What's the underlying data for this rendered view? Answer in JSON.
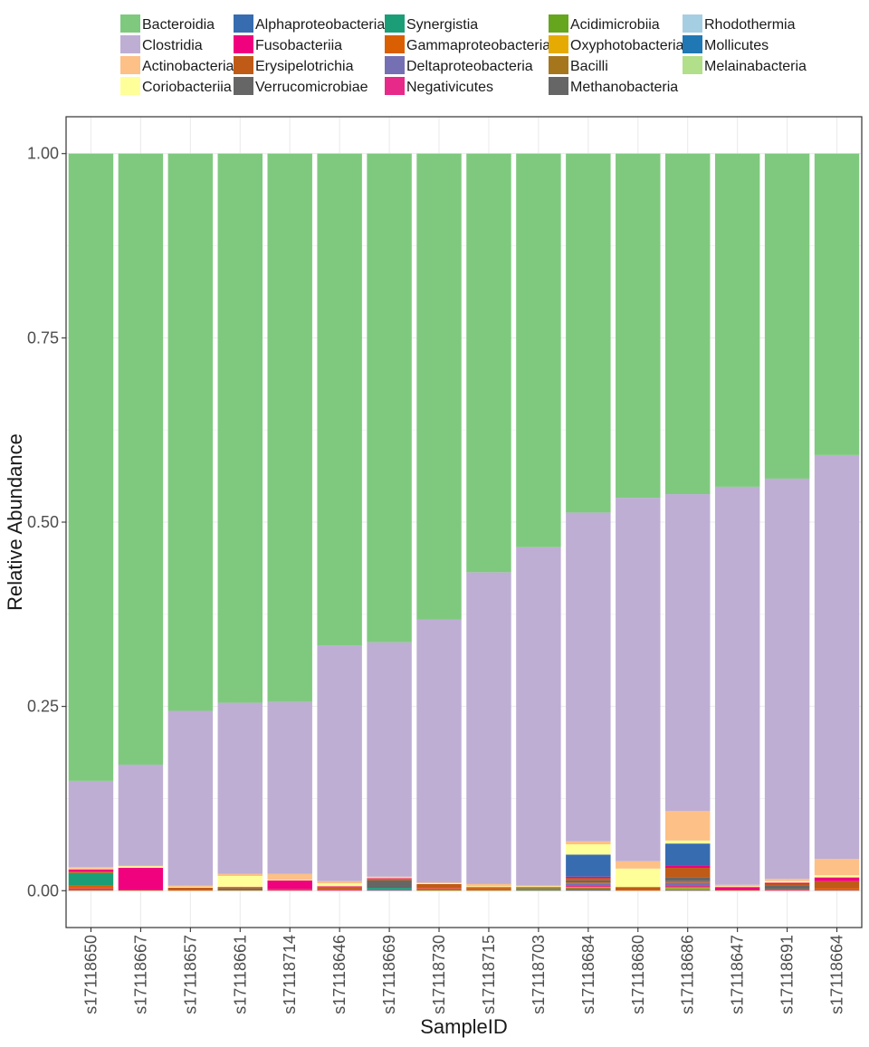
{
  "chart_data": {
    "type": "bar",
    "stacked": true,
    "title": "",
    "xlabel": "SampleID",
    "ylabel": "Relative Abundance",
    "ylim": [
      -0.05,
      1.05
    ],
    "yticks": [
      0.0,
      0.25,
      0.5,
      0.75,
      1.0
    ],
    "ytick_labels": [
      "0.00",
      "0.25",
      "0.50",
      "0.75",
      "1.00"
    ],
    "grid": true,
    "legend_position": "top",
    "categories": [
      "s17118650",
      "s17118667",
      "s17118657",
      "s17118661",
      "s17118714",
      "s17118646",
      "s17118669",
      "s17118730",
      "s17118715",
      "s17118703",
      "s17118684",
      "s17118680",
      "s17118686",
      "s17118647",
      "s17118691",
      "s17118664"
    ],
    "legend": [
      {
        "name": "Bacteroidia",
        "color": "#7fc97f"
      },
      {
        "name": "Clostridia",
        "color": "#beaed4"
      },
      {
        "name": "Actinobacteria",
        "color": "#fdc086"
      },
      {
        "name": "Coriobacteriia",
        "color": "#ffff99"
      },
      {
        "name": "Alphaproteobacteria",
        "color": "#386cb0"
      },
      {
        "name": "Fusobacteriia",
        "color": "#f0027f"
      },
      {
        "name": "Erysipelotrichia",
        "color": "#bf5b17"
      },
      {
        "name": "Verrucomicrobiae",
        "color": "#666666"
      },
      {
        "name": "Synergistia",
        "color": "#1b9e77"
      },
      {
        "name": "Gammaproteobacteria",
        "color": "#d95f02"
      },
      {
        "name": "Deltaproteobacteria",
        "color": "#7570b3"
      },
      {
        "name": "Negativicutes",
        "color": "#e7298a"
      },
      {
        "name": "Acidimicrobiia",
        "color": "#66a61e"
      },
      {
        "name": "Oxyphotobacteria",
        "color": "#e6ab02"
      },
      {
        "name": "Bacilli",
        "color": "#a6761d"
      },
      {
        "name": "Methanobacteria",
        "color": "#666666"
      },
      {
        "name": "Rhodothermia",
        "color": "#a6cee3"
      },
      {
        "name": "Mollicutes",
        "color": "#1f78b4"
      },
      {
        "name": "Melainabacteria",
        "color": "#b2df8a"
      }
    ],
    "series": [
      {
        "name": "Bacteroidia",
        "values": [
          0.851,
          0.829,
          0.756,
          0.745,
          0.744,
          0.667,
          0.663,
          0.632,
          0.568,
          0.534,
          0.487,
          0.467,
          0.462,
          0.452,
          0.441,
          0.409
        ]
      },
      {
        "name": "Clostridia",
        "values": [
          0.117,
          0.137,
          0.237,
          0.232,
          0.233,
          0.32,
          0.318,
          0.357,
          0.423,
          0.459,
          0.446,
          0.493,
          0.43,
          0.54,
          0.543,
          0.548
        ]
      },
      {
        "name": "Actinobacteria",
        "values": [
          0.002,
          0.001,
          0.002,
          0.003,
          0.008,
          0.003,
          0.001,
          0.001,
          0.003,
          0.001,
          0.004,
          0.01,
          0.04,
          0.002,
          0.003,
          0.022
        ]
      },
      {
        "name": "Coriobacteriia",
        "values": [
          0.001,
          0.002,
          0.001,
          0.015,
          0.001,
          0.004,
          0.001,
          0.001,
          0.001,
          0.001,
          0.014,
          0.025,
          0.004,
          0.001,
          0.002,
          0.003
        ]
      },
      {
        "name": "Alphaproteobacteria",
        "values": [
          0.0,
          0.0,
          0.0,
          0.0,
          0.0,
          0.0,
          0.0,
          0.0,
          0.0,
          0.0,
          0.03,
          0.0,
          0.03,
          0.0,
          0.0,
          0.0
        ]
      },
      {
        "name": "Fusobacteriia",
        "values": [
          0.003,
          0.03,
          0.0,
          0.001,
          0.012,
          0.001,
          0.001,
          0.0,
          0.0,
          0.0,
          0.002,
          0.0,
          0.003,
          0.004,
          0.002,
          0.005
        ]
      },
      {
        "name": "Erysipelotrichia",
        "values": [
          0.002,
          0.001,
          0.003,
          0.001,
          0.001,
          0.003,
          0.002,
          0.005,
          0.002,
          0.002,
          0.003,
          0.004,
          0.013,
          0.001,
          0.002,
          0.009
        ]
      },
      {
        "name": "Verrucomicrobiae",
        "values": [
          0.0,
          0.0,
          0.0,
          0.002,
          0.0,
          0.0,
          0.01,
          0.0,
          0.0,
          0.0,
          0.003,
          0.0,
          0.005,
          0.0,
          0.005,
          0.0
        ]
      },
      {
        "name": "Synergistia",
        "values": [
          0.017,
          0.0,
          0.0,
          0.0,
          0.0,
          0.0,
          0.002,
          0.0,
          0.0,
          0.001,
          0.0,
          0.0,
          0.0,
          0.0,
          0.0,
          0.0
        ]
      },
      {
        "name": "Gammaproteobacteria",
        "values": [
          0.004,
          0.0,
          0.001,
          0.0,
          0.0,
          0.001,
          0.0,
          0.001,
          0.002,
          0.0,
          0.001,
          0.001,
          0.002,
          0.0,
          0.001,
          0.002
        ]
      },
      {
        "name": "Deltaproteobacteria",
        "values": [
          0.0,
          0.0,
          0.0,
          0.0,
          0.0,
          0.0,
          0.001,
          0.0,
          0.0,
          0.0,
          0.003,
          0.0,
          0.004,
          0.0,
          0.0,
          0.0
        ]
      },
      {
        "name": "Negativicutes",
        "values": [
          0.002,
          0.0,
          0.0,
          0.0,
          0.001,
          0.001,
          0.0,
          0.001,
          0.0,
          0.0,
          0.002,
          0.0,
          0.002,
          0.0,
          0.001,
          0.001
        ]
      },
      {
        "name": "Acidimicrobiia",
        "values": [
          0.0,
          0.0,
          0.0,
          0.0,
          0.0,
          0.0,
          0.0,
          0.0,
          0.0,
          0.001,
          0.0,
          0.0,
          0.002,
          0.0,
          0.0,
          0.0
        ]
      },
      {
        "name": "Oxyphotobacteria",
        "values": [
          0.0,
          0.0,
          0.0,
          0.0,
          0.0,
          0.0,
          0.0,
          0.0,
          0.0,
          0.0,
          0.001,
          0.0,
          0.001,
          0.0,
          0.0,
          0.0
        ]
      },
      {
        "name": "Bacilli",
        "values": [
          0.001,
          0.0,
          0.0,
          0.001,
          0.0,
          0.0,
          0.0,
          0.002,
          0.001,
          0.0,
          0.002,
          0.0,
          0.001,
          0.0,
          0.0,
          0.001
        ]
      },
      {
        "name": "Methanobacteria",
        "values": [
          0.0,
          0.0,
          0.0,
          0.0,
          0.0,
          0.0,
          0.001,
          0.0,
          0.0,
          0.001,
          0.002,
          0.0,
          0.001,
          0.0,
          0.0,
          0.0
        ]
      },
      {
        "name": "Rhodothermia",
        "values": [
          0.0,
          0.0,
          0.0,
          0.0,
          0.0,
          0.0,
          0.0,
          0.0,
          0.0,
          0.0,
          0.0,
          0.0,
          0.0,
          0.0,
          0.0,
          0.0
        ]
      },
      {
        "name": "Mollicutes",
        "values": [
          0.0,
          0.0,
          0.0,
          0.0,
          0.0,
          0.0,
          0.0,
          0.0,
          0.0,
          0.0,
          0.0,
          0.0,
          0.0,
          0.0,
          0.0,
          0.0
        ]
      },
      {
        "name": "Melainabacteria",
        "values": [
          0.0,
          0.0,
          0.0,
          0.0,
          0.0,
          0.0,
          0.0,
          0.0,
          0.0,
          0.0,
          0.0,
          0.0,
          0.0,
          0.0,
          0.0,
          0.0
        ]
      }
    ]
  }
}
